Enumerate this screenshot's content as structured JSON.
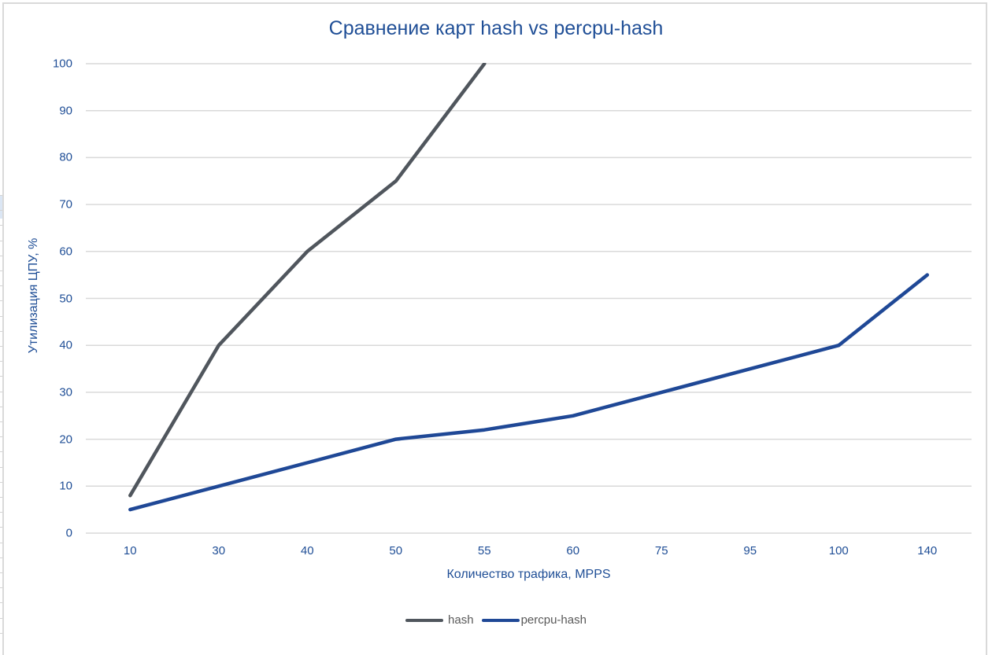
{
  "chart_data": {
    "type": "line",
    "title": "Сравнение карт hash vs percpu-hash",
    "xlabel": "Количество трафика, MPPS",
    "ylabel": "Утилизация ЦПУ, %",
    "categories": [
      "10",
      "30",
      "40",
      "50",
      "55",
      "60",
      "75",
      "95",
      "100",
      "140"
    ],
    "series": [
      {
        "name": "hash",
        "color": "#50565d",
        "values": [
          8,
          40,
          60,
          75,
          100,
          null,
          null,
          null,
          null,
          null
        ]
      },
      {
        "name": "percpu-hash",
        "color": "#1f4896",
        "values": [
          5,
          10,
          15,
          20,
          22,
          25,
          30,
          35,
          40,
          55
        ]
      }
    ],
    "ylim": [
      0,
      100
    ],
    "yticks": [
      0,
      10,
      20,
      30,
      40,
      50,
      60,
      70,
      80,
      90,
      100
    ],
    "grid": true,
    "legend_position": "bottom"
  },
  "colors": {
    "text": "#1f4e96",
    "grid": "#d9d9d9",
    "legend_text": "#595959"
  },
  "legend": {
    "items": [
      {
        "label": "hash",
        "color": "#50565d"
      },
      {
        "label": "percpu-hash",
        "color": "#1f4896"
      }
    ]
  }
}
